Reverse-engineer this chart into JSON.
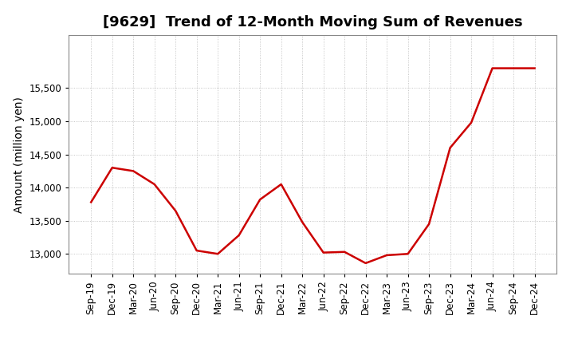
{
  "title": "[9629]  Trend of 12-Month Moving Sum of Revenues",
  "ylabel": "Amount (million yen)",
  "line_color": "#cc0000",
  "line_width": 1.8,
  "background_color": "#ffffff",
  "grid_color": "#999999",
  "labels": [
    "Sep-19",
    "Dec-19",
    "Mar-20",
    "Jun-20",
    "Sep-20",
    "Dec-20",
    "Mar-21",
    "Jun-21",
    "Sep-21",
    "Dec-21",
    "Mar-22",
    "Jun-22",
    "Sep-22",
    "Dec-22",
    "Mar-23",
    "Jun-23",
    "Sep-23",
    "Dec-23",
    "Mar-24",
    "Jun-24",
    "Sep-24",
    "Dec-24"
  ],
  "values": [
    13780,
    14300,
    14250,
    14050,
    13650,
    13050,
    13000,
    13280,
    13820,
    14050,
    13480,
    13020,
    13030,
    12860,
    12980,
    13000,
    13450,
    14600,
    14980,
    15800,
    15800,
    15800
  ],
  "ylim_min": 12700,
  "ylim_max": 16300,
  "yticks": [
    13000,
    13500,
    14000,
    14500,
    15000,
    15500
  ],
  "title_fontsize": 13,
  "tick_fontsize": 8.5,
  "ylabel_fontsize": 10
}
